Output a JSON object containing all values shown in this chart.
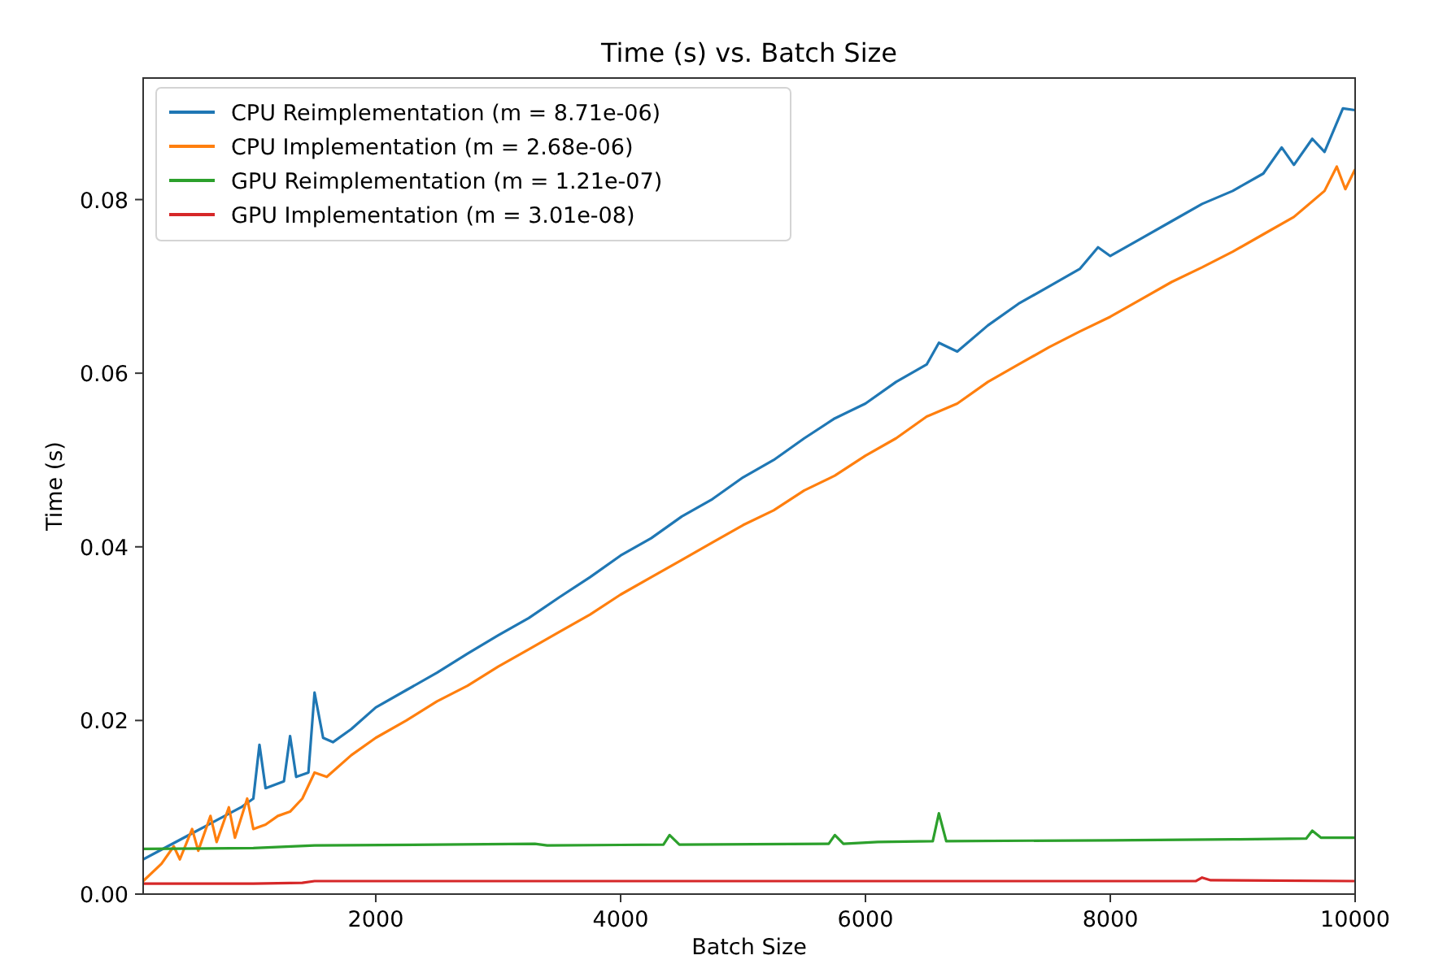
{
  "chart_data": {
    "type": "line",
    "title": "Time (s) vs. Batch Size",
    "xlabel": "Batch Size",
    "ylabel": "Time (s)",
    "xlim": [
      100,
      10000
    ],
    "xticks": [
      2000,
      4000,
      6000,
      8000,
      10000
    ],
    "ylim": [
      0,
      0.094
    ],
    "yticks": [
      {
        "value": 0,
        "label": "0.00"
      },
      {
        "value": 0.02,
        "label": "0.02"
      },
      {
        "value": 0.04,
        "label": "0.04"
      },
      {
        "value": 0.06,
        "label": "0.06"
      },
      {
        "value": 0.08,
        "label": "0.08"
      }
    ],
    "grid": false,
    "legend": "top left",
    "marker": "none",
    "line_style": "solid",
    "series": [
      {
        "name": "CPU Reimplementation (m = 8.71e-06)",
        "color": "#1f77b4",
        "x": [
          100,
          300,
          500,
          700,
          900,
          1000,
          1050,
          1100,
          1250,
          1300,
          1350,
          1450,
          1500,
          1570,
          1650,
          1800,
          2000,
          2250,
          2500,
          2750,
          3000,
          3250,
          3500,
          3750,
          4000,
          4250,
          4500,
          4750,
          5000,
          5250,
          5500,
          5750,
          6000,
          6250,
          6500,
          6600,
          6750,
          7000,
          7250,
          7500,
          7750,
          7900,
          8000,
          8250,
          8500,
          8750,
          9000,
          9250,
          9400,
          9500,
          9650,
          9750,
          9900,
          10000
        ],
        "values": [
          0.004,
          0.0055,
          0.007,
          0.0085,
          0.01,
          0.011,
          0.0172,
          0.0122,
          0.013,
          0.0182,
          0.0135,
          0.014,
          0.0232,
          0.018,
          0.0175,
          0.019,
          0.0215,
          0.0235,
          0.0255,
          0.0277,
          0.0298,
          0.0318,
          0.0342,
          0.0365,
          0.039,
          0.041,
          0.0435,
          0.0455,
          0.048,
          0.05,
          0.0525,
          0.0548,
          0.0565,
          0.059,
          0.061,
          0.0635,
          0.0625,
          0.0655,
          0.068,
          0.07,
          0.072,
          0.0745,
          0.0735,
          0.0755,
          0.0775,
          0.0795,
          0.081,
          0.083,
          0.086,
          0.084,
          0.087,
          0.0855,
          0.0905,
          0.0903
        ]
      },
      {
        "name": "CPU Implementation (m = 2.68e-06)",
        "color": "#ff7f0e",
        "x": [
          100,
          250,
          350,
          400,
          500,
          550,
          650,
          700,
          800,
          850,
          950,
          1000,
          1100,
          1200,
          1300,
          1400,
          1500,
          1600,
          1800,
          2000,
          2250,
          2500,
          2750,
          3000,
          3250,
          3500,
          3750,
          4000,
          4250,
          4500,
          4750,
          5000,
          5250,
          5500,
          5750,
          6000,
          6250,
          6500,
          6750,
          7000,
          7250,
          7500,
          7750,
          8000,
          8250,
          8500,
          8750,
          9000,
          9250,
          9500,
          9750,
          9850,
          9920,
          10000
        ],
        "values": [
          0.0015,
          0.0035,
          0.0055,
          0.004,
          0.0075,
          0.005,
          0.009,
          0.006,
          0.01,
          0.0065,
          0.011,
          0.0075,
          0.008,
          0.009,
          0.0095,
          0.011,
          0.014,
          0.0135,
          0.016,
          0.018,
          0.02,
          0.0222,
          0.024,
          0.0262,
          0.0282,
          0.0302,
          0.0322,
          0.0345,
          0.0365,
          0.0385,
          0.0405,
          0.0425,
          0.0442,
          0.0465,
          0.0482,
          0.0505,
          0.0525,
          0.055,
          0.0565,
          0.059,
          0.061,
          0.063,
          0.0648,
          0.0665,
          0.0685,
          0.0705,
          0.0722,
          0.074,
          0.076,
          0.078,
          0.081,
          0.0838,
          0.0812,
          0.0835
        ]
      },
      {
        "name": "GPU Reimplementation (m = 1.21e-07)",
        "color": "#2ca02c",
        "x": [
          100,
          1000,
          1500,
          2500,
          3300,
          3400,
          4350,
          4400,
          4480,
          5700,
          5750,
          5820,
          6100,
          6550,
          6600,
          6660,
          8000,
          9000,
          9600,
          9650,
          9720,
          10000
        ],
        "values": [
          0.0052,
          0.0053,
          0.0056,
          0.0057,
          0.0058,
          0.0056,
          0.0057,
          0.0068,
          0.0057,
          0.0058,
          0.0068,
          0.0058,
          0.006,
          0.0061,
          0.0093,
          0.0061,
          0.0062,
          0.0063,
          0.0064,
          0.0073,
          0.0065,
          0.0065
        ]
      },
      {
        "name": "GPU Implementation (m = 3.01e-08)",
        "color": "#d62728",
        "x": [
          100,
          1000,
          1400,
          1500,
          5000,
          8700,
          8750,
          8820,
          10000
        ],
        "values": [
          0.0012,
          0.0012,
          0.0013,
          0.0015,
          0.0015,
          0.0015,
          0.0019,
          0.0016,
          0.0015
        ]
      }
    ]
  }
}
